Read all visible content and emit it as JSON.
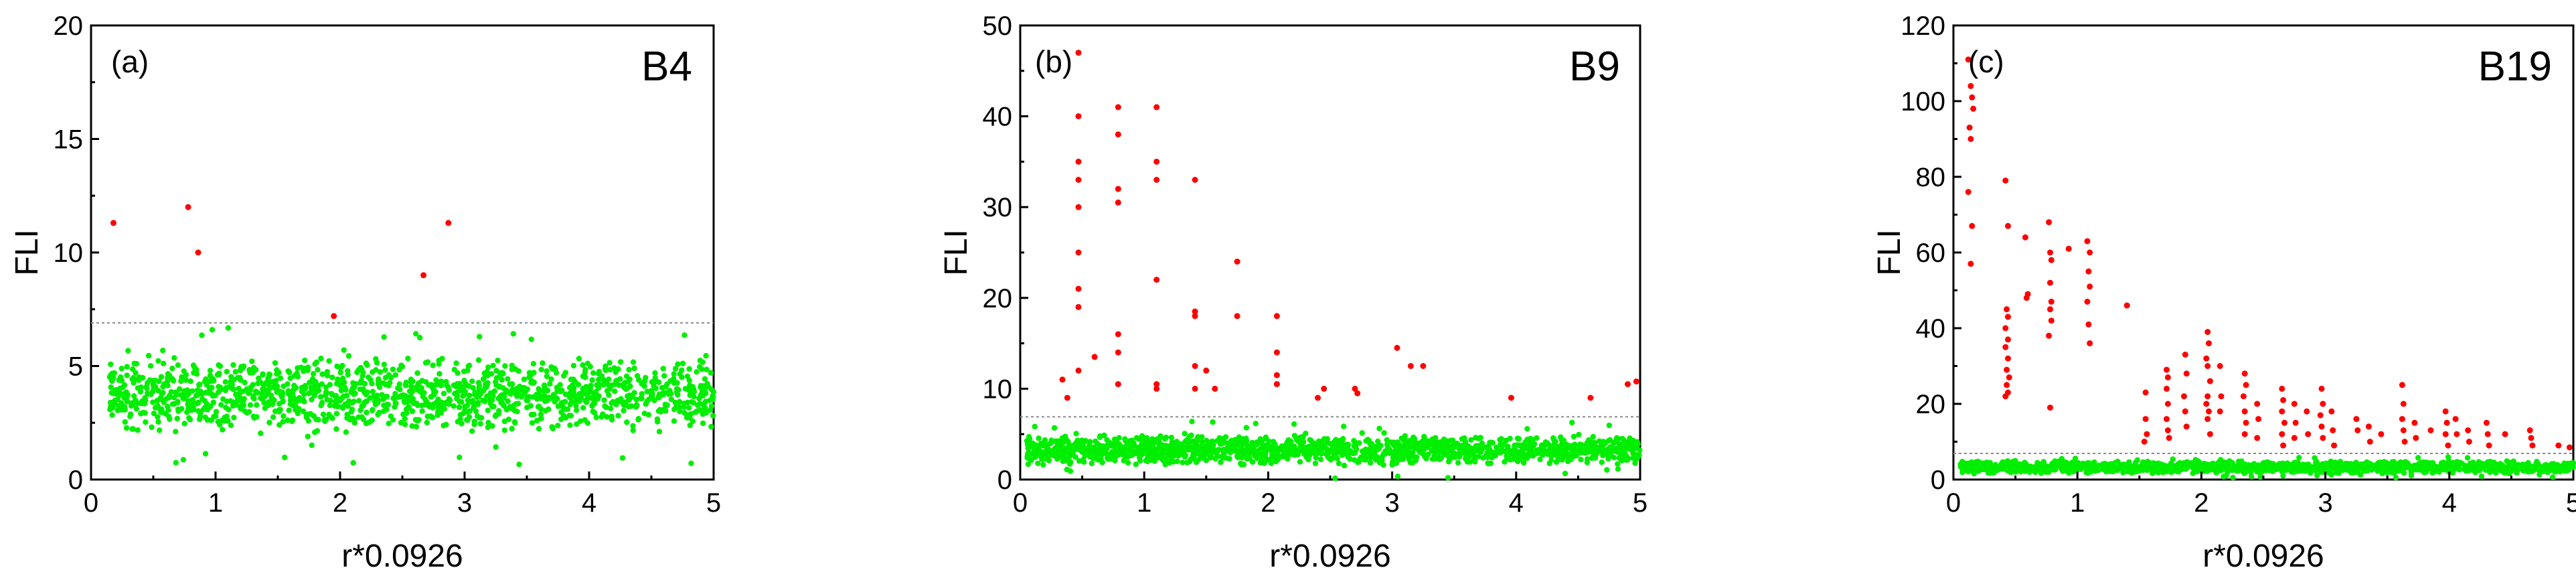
{
  "figure": {
    "colors": {
      "chaotic": "#ff0000",
      "regular": "#00ee00",
      "threshold": "#8a8a8a"
    }
  },
  "chart_data": [
    {
      "type": "scatter",
      "panel_tag": "(a)",
      "panel_name": "B4",
      "xlabel": "r*0.0926",
      "ylabel": "FLI",
      "xlim": [
        0,
        5
      ],
      "ylim": [
        0,
        20
      ],
      "xticks": [
        0,
        1,
        2,
        3,
        4,
        5
      ],
      "yticks": [
        0,
        5,
        10,
        15,
        20
      ],
      "threshold": 6.9,
      "regular_band": {
        "x_range": [
          0.15,
          5.0
        ],
        "y_range": [
          2.0,
          5.5
        ],
        "density": 1.0,
        "outlier_low": 0.5,
        "outlier_high": 6.7
      },
      "chaotic_points": [
        [
          0.18,
          11.3
        ],
        [
          0.78,
          12.0
        ],
        [
          0.86,
          10.0
        ],
        [
          1.95,
          7.2
        ],
        [
          2.67,
          9.0
        ],
        [
          2.87,
          11.3
        ]
      ]
    },
    {
      "type": "scatter",
      "panel_tag": "(b)",
      "panel_name": "B9",
      "xlabel": "r*0.0926",
      "ylabel": "FLI",
      "xlim": [
        0,
        5
      ],
      "ylim": [
        0,
        50
      ],
      "xticks": [
        0,
        1,
        2,
        3,
        4,
        5
      ],
      "yticks": [
        0,
        10,
        20,
        30,
        40,
        50
      ],
      "threshold": 6.9,
      "regular_band": {
        "x_range": [
          0.05,
          5.0
        ],
        "y_range": [
          1.5,
          5.0
        ],
        "density": 1.1,
        "outlier_low": 0.0,
        "outlier_high": 6.5
      },
      "chaotic_points": [
        [
          0.34,
          11.0
        ],
        [
          0.38,
          9.0
        ],
        [
          0.47,
          47.0
        ],
        [
          0.47,
          40.0
        ],
        [
          0.47,
          35.0
        ],
        [
          0.47,
          33.0
        ],
        [
          0.47,
          30.0
        ],
        [
          0.47,
          25.0
        ],
        [
          0.47,
          21.0
        ],
        [
          0.47,
          19.0
        ],
        [
          0.47,
          12.0
        ],
        [
          0.6,
          13.5
        ],
        [
          0.79,
          41.0
        ],
        [
          0.79,
          38.0
        ],
        [
          0.79,
          32.0
        ],
        [
          0.79,
          30.5
        ],
        [
          0.79,
          16.0
        ],
        [
          0.79,
          14.0
        ],
        [
          0.79,
          10.5
        ],
        [
          1.1,
          41.0
        ],
        [
          1.1,
          35.0
        ],
        [
          1.1,
          33.0
        ],
        [
          1.1,
          22.0
        ],
        [
          1.1,
          10.5
        ],
        [
          1.1,
          10.0
        ],
        [
          1.41,
          33.0
        ],
        [
          1.41,
          18.5
        ],
        [
          1.41,
          18.0
        ],
        [
          1.41,
          12.5
        ],
        [
          1.41,
          10.0
        ],
        [
          1.5,
          12.0
        ],
        [
          1.57,
          10.0
        ],
        [
          1.75,
          24.0
        ],
        [
          1.75,
          18.0
        ],
        [
          2.07,
          18.0
        ],
        [
          2.07,
          14.0
        ],
        [
          2.07,
          11.5
        ],
        [
          2.07,
          10.5
        ],
        [
          2.4,
          9.0
        ],
        [
          2.45,
          10.0
        ],
        [
          2.7,
          10.0
        ],
        [
          2.72,
          9.5
        ],
        [
          3.04,
          14.5
        ],
        [
          3.15,
          12.5
        ],
        [
          3.25,
          12.5
        ],
        [
          3.96,
          9.0
        ],
        [
          4.6,
          9.0
        ],
        [
          4.9,
          10.5
        ],
        [
          4.97,
          10.8
        ]
      ]
    },
    {
      "type": "scatter",
      "panel_tag": "(c)",
      "panel_name": "B19",
      "xlabel": "r*0.0926",
      "ylabel": "FLI",
      "xlim": [
        0,
        5
      ],
      "ylim": [
        0,
        120
      ],
      "xticks": [
        0,
        1,
        2,
        3,
        4,
        5
      ],
      "yticks": [
        0,
        20,
        40,
        60,
        80,
        100,
        120
      ],
      "threshold": 6.9,
      "regular_band": {
        "x_range": [
          0.05,
          5.0
        ],
        "y_range": [
          1.5,
          5.0
        ],
        "density": 1.1,
        "outlier_low": 0.5,
        "outlier_high": 6.0
      },
      "chaotic_points": [
        [
          0.12,
          111.0
        ],
        [
          0.14,
          104.0
        ],
        [
          0.15,
          101.0
        ],
        [
          0.16,
          98.0
        ],
        [
          0.13,
          93.0
        ],
        [
          0.14,
          90.0
        ],
        [
          0.12,
          76.0
        ],
        [
          0.15,
          67.0
        ],
        [
          0.14,
          57.0
        ],
        [
          0.42,
          79.0
        ],
        [
          0.44,
          67.0
        ],
        [
          0.43,
          45.0
        ],
        [
          0.44,
          43.0
        ],
        [
          0.42,
          40.0
        ],
        [
          0.44,
          37.0
        ],
        [
          0.42,
          35.0
        ],
        [
          0.44,
          32.0
        ],
        [
          0.43,
          29.0
        ],
        [
          0.45,
          27.0
        ],
        [
          0.43,
          25.0
        ],
        [
          0.44,
          23.0
        ],
        [
          0.42,
          22.0
        ],
        [
          0.58,
          64.0
        ],
        [
          0.6,
          49.0
        ],
        [
          0.59,
          48.0
        ],
        [
          0.77,
          68.0
        ],
        [
          0.78,
          60.0
        ],
        [
          0.79,
          58.0
        ],
        [
          0.78,
          52.0
        ],
        [
          0.79,
          47.0
        ],
        [
          0.78,
          45.0
        ],
        [
          0.79,
          42.0
        ],
        [
          0.77,
          38.0
        ],
        [
          0.78,
          19.0
        ],
        [
          0.93,
          61.0
        ],
        [
          1.08,
          63.0
        ],
        [
          1.1,
          60.0
        ],
        [
          1.09,
          55.0
        ],
        [
          1.1,
          51.0
        ],
        [
          1.08,
          47.0
        ],
        [
          1.09,
          41.0
        ],
        [
          1.1,
          36.0
        ],
        [
          1.4,
          46.0
        ],
        [
          1.55,
          23.0
        ],
        [
          1.55,
          16.0
        ],
        [
          1.56,
          12.0
        ],
        [
          1.54,
          10.0
        ],
        [
          1.72,
          29.0
        ],
        [
          1.73,
          27.0
        ],
        [
          1.72,
          24.0
        ],
        [
          1.73,
          20.0
        ],
        [
          1.72,
          16.0
        ],
        [
          1.73,
          13.0
        ],
        [
          1.74,
          11.0
        ],
        [
          1.87,
          33.0
        ],
        [
          1.88,
          28.0
        ],
        [
          1.86,
          22.0
        ],
        [
          1.87,
          18.0
        ],
        [
          1.88,
          14.0
        ],
        [
          2.05,
          39.0
        ],
        [
          2.06,
          36.0
        ],
        [
          2.04,
          32.0
        ],
        [
          2.05,
          30.0
        ],
        [
          2.07,
          26.0
        ],
        [
          2.05,
          22.0
        ],
        [
          2.04,
          20.0
        ],
        [
          2.06,
          18.0
        ],
        [
          2.05,
          16.0
        ],
        [
          2.07,
          12.0
        ],
        [
          2.15,
          30.0
        ],
        [
          2.16,
          22.0
        ],
        [
          2.15,
          18.0
        ],
        [
          2.35,
          28.0
        ],
        [
          2.36,
          25.0
        ],
        [
          2.34,
          22.0
        ],
        [
          2.35,
          18.0
        ],
        [
          2.36,
          15.0
        ],
        [
          2.35,
          12.0
        ],
        [
          2.45,
          20.0
        ],
        [
          2.46,
          16.0
        ],
        [
          2.45,
          11.0
        ],
        [
          2.65,
          24.0
        ],
        [
          2.66,
          21.0
        ],
        [
          2.65,
          18.0
        ],
        [
          2.67,
          15.0
        ],
        [
          2.65,
          12.0
        ],
        [
          2.66,
          9.0
        ],
        [
          2.75,
          20.0
        ],
        [
          2.76,
          15.0
        ],
        [
          2.75,
          11.0
        ],
        [
          2.85,
          18.0
        ],
        [
          2.86,
          12.0
        ],
        [
          2.97,
          24.0
        ],
        [
          2.98,
          20.0
        ],
        [
          2.96,
          17.0
        ],
        [
          2.97,
          14.0
        ],
        [
          2.98,
          11.0
        ],
        [
          3.05,
          18.0
        ],
        [
          3.06,
          13.0
        ],
        [
          3.07,
          9.0
        ],
        [
          3.25,
          16.0
        ],
        [
          3.26,
          13.0
        ],
        [
          3.35,
          14.0
        ],
        [
          3.36,
          10.0
        ],
        [
          3.45,
          12.0
        ],
        [
          3.62,
          25.0
        ],
        [
          3.63,
          20.0
        ],
        [
          3.62,
          16.0
        ],
        [
          3.63,
          13.0
        ],
        [
          3.64,
          10.0
        ],
        [
          3.72,
          15.0
        ],
        [
          3.73,
          11.0
        ],
        [
          3.85,
          13.0
        ],
        [
          3.97,
          18.0
        ],
        [
          3.98,
          15.0
        ],
        [
          3.97,
          12.0
        ],
        [
          3.99,
          9.0
        ],
        [
          4.05,
          16.0
        ],
        [
          4.06,
          12.0
        ],
        [
          4.15,
          13.0
        ],
        [
          4.16,
          10.0
        ],
        [
          4.3,
          15.0
        ],
        [
          4.31,
          12.0
        ],
        [
          4.32,
          9.0
        ],
        [
          4.45,
          12.0
        ],
        [
          4.65,
          13.0
        ],
        [
          4.66,
          11.0
        ],
        [
          4.67,
          9.0
        ],
        [
          4.88,
          9.0
        ],
        [
          4.97,
          8.5
        ]
      ]
    }
  ]
}
